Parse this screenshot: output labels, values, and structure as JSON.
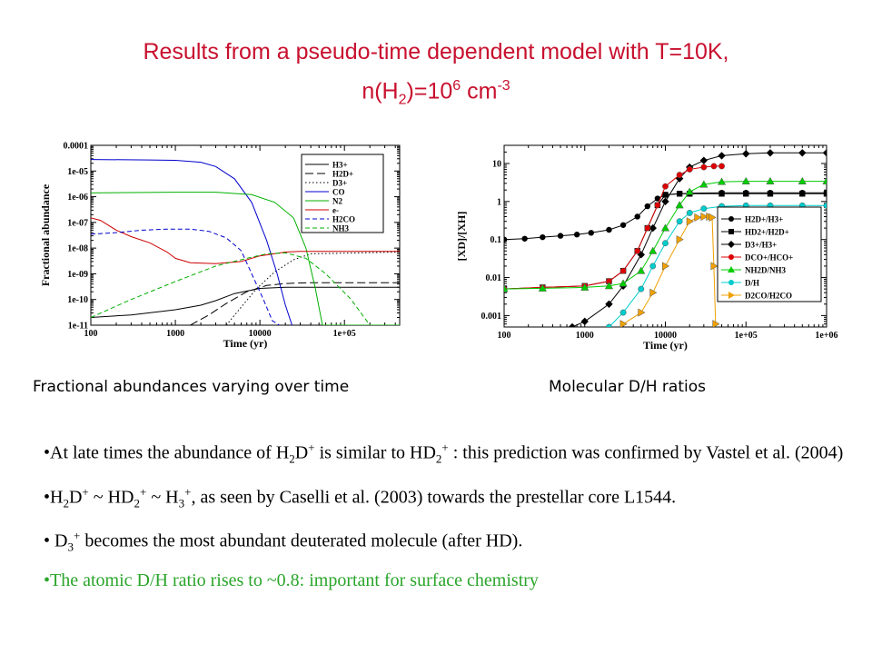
{
  "title": {
    "line1": "Results from a pseudo-time dependent model with T=10K,",
    "l2_a": "n(H",
    "l2_b": "2",
    "l2_c": ")=10",
    "l2_d": "6",
    "l2_e": " cm",
    "l2_f": "-3"
  },
  "captions": {
    "left": "Fractional abundances varying over time",
    "right": "Molecular D/H ratios"
  },
  "chart_data": [
    {
      "type": "line",
      "ylabel": "Fractional abundance",
      "xlabel": "Time (yr)",
      "xscale": "log",
      "yscale": "log",
      "xlim": [
        100,
        450000
      ],
      "ylim": [
        1e-11,
        0.0001
      ],
      "xticks": [
        "100",
        "1000",
        "10000",
        "1e+05"
      ],
      "yticks": [
        "1e-11",
        "1e-10",
        "1e-09",
        "1e-08",
        "1e-07",
        "1e-06",
        "1e-05",
        "0.0001"
      ],
      "legend_position": "top-right",
      "series": [
        {
          "name": "H3+",
          "color": "#000000",
          "dash": "solid",
          "x": [
            100,
            300,
            1000,
            2000,
            3000,
            5000,
            10000,
            20000,
            50000,
            450000
          ],
          "y": [
            2e-11,
            2.5e-11,
            4e-11,
            6e-11,
            9e-11,
            1.7e-10,
            2.7e-10,
            3e-10,
            3e-10,
            3e-10
          ]
        },
        {
          "name": "H2D+",
          "color": "#000000",
          "dash": "longdash",
          "x": [
            1500,
            2500,
            4000,
            7000,
            12000,
            20000,
            40000,
            450000
          ],
          "y": [
            1e-11,
            2.5e-11,
            7e-11,
            2e-10,
            3.5e-10,
            4.2e-10,
            4.5e-10,
            4.5e-10
          ]
        },
        {
          "name": "D3+",
          "color": "#000000",
          "dash": "dotted",
          "x": [
            4000,
            6000,
            9000,
            15000,
            25000,
            40000,
            450000
          ],
          "y": [
            1e-11,
            5e-11,
            2.5e-10,
            1.2e-09,
            3.5e-09,
            6e-09,
            7e-09
          ]
        },
        {
          "name": "CO",
          "color": "#0000cc",
          "dash": "solid",
          "x": [
            100,
            500,
            1000,
            2000,
            3000,
            5000,
            8000,
            12000,
            16000,
            20000,
            24000
          ],
          "y": [
            2.8e-05,
            2.7e-05,
            2.6e-05,
            2.2e-05,
            1.5e-05,
            5e-06,
            6e-07,
            2e-08,
            1e-09,
            6e-11,
            1e-11
          ]
        },
        {
          "name": "N2",
          "color": "#00b000",
          "dash": "solid",
          "x": [
            100,
            1000,
            3000,
            8000,
            15000,
            25000,
            35000,
            45000,
            55000,
            450000
          ],
          "y": [
            1.4e-06,
            1.5e-06,
            1.5e-06,
            1.2e-06,
            6e-07,
            1.5e-07,
            1e-08,
            3e-10,
            1e-11,
            1e-11
          ]
        },
        {
          "name": "e-",
          "color": "#cc0000",
          "dash": "solid",
          "x": [
            100,
            130,
            200,
            300,
            500,
            800,
            1000,
            1500,
            3000,
            6000,
            10000,
            20000,
            30000,
            450000
          ],
          "y": [
            1.5e-07,
            1.2e-07,
            5e-08,
            2.8e-08,
            1.6e-08,
            7e-09,
            4e-09,
            2.7e-09,
            2.5e-09,
            3e-09,
            5e-09,
            7e-09,
            7.5e-09,
            7.5e-09
          ]
        },
        {
          "name": "H2CO",
          "color": "#0000cc",
          "dash": "dashed",
          "x": [
            100,
            200,
            400,
            800,
            1500,
            2500,
            4000,
            6000,
            8000,
            11000,
            14000,
            17000
          ],
          "y": [
            3.5e-08,
            4e-08,
            5e-08,
            5.5e-08,
            5.5e-08,
            4.5e-08,
            2.5e-08,
            8e-09,
            1e-09,
            1e-10,
            1.5e-11,
            1e-11
          ]
        },
        {
          "name": "NH3",
          "color": "#00b000",
          "dash": "dashed",
          "x": [
            100,
            300,
            1000,
            3000,
            7000,
            12000,
            20000,
            35000,
            60000,
            120000,
            200000
          ],
          "y": [
            2e-11,
            1e-10,
            5e-10,
            2e-09,
            4e-09,
            6e-09,
            6.5e-09,
            4e-09,
            1e-09,
            1e-10,
            1e-11
          ]
        }
      ]
    },
    {
      "type": "line",
      "ylabel": "[XD]/[XH]",
      "xlabel": "Time (yr)",
      "xscale": "log",
      "yscale": "log",
      "xlim": [
        100,
        1000000
      ],
      "ylim": [
        0.0005,
        30
      ],
      "xticks": [
        "100",
        "1000",
        "10000",
        "1e+05",
        "1e+06"
      ],
      "yticks": [
        "0.001",
        "0.01",
        "0.1",
        "1",
        "10"
      ],
      "legend_position": "center-right",
      "series": [
        {
          "name": "H2D+/H3+",
          "color": "#000000",
          "marker": "circle",
          "x": [
            100,
            180,
            300,
            500,
            800,
            1200,
            2000,
            3000,
            4500,
            6000,
            8000,
            10000,
            15000,
            20000,
            50000,
            100000,
            200000,
            500000,
            1000000
          ],
          "y": [
            0.1,
            0.105,
            0.115,
            0.125,
            0.135,
            0.15,
            0.18,
            0.24,
            0.4,
            0.75,
            1.2,
            1.5,
            1.6,
            1.65,
            1.7,
            1.7,
            1.7,
            1.7,
            1.7
          ]
        },
        {
          "name": "HD2+/H2D+",
          "color": "#000000",
          "marker": "square",
          "x": [
            100,
            300,
            1000,
            2000,
            3000,
            4500,
            6000,
            8000,
            10000,
            15000,
            20000,
            50000,
            100000,
            200000,
            500000,
            1000000
          ],
          "y": [
            0.005,
            0.0055,
            0.006,
            0.008,
            0.015,
            0.05,
            0.2,
            0.8,
            1.5,
            1.6,
            1.6,
            1.6,
            1.6,
            1.6,
            1.6,
            1.6
          ]
        },
        {
          "name": "D3+/H3+",
          "color": "#000000",
          "marker": "diamond",
          "x": [
            700,
            1000,
            2000,
            3000,
            5000,
            7000,
            10000,
            15000,
            20000,
            30000,
            50000,
            100000,
            200000,
            500000,
            1000000
          ],
          "y": [
            0.0005,
            0.0007,
            0.002,
            0.006,
            0.04,
            0.2,
            1.0,
            4,
            8,
            12,
            16,
            18,
            19,
            19,
            19
          ]
        },
        {
          "name": "DCO+/HCO+",
          "color": "#dd0000",
          "marker": "circle",
          "x": [
            100,
            300,
            1000,
            2000,
            3000,
            4500,
            6000,
            8000,
            10000,
            15000,
            20000,
            30000,
            40000,
            50000
          ],
          "y": [
            0.005,
            0.0055,
            0.006,
            0.008,
            0.015,
            0.05,
            0.2,
            0.8,
            2.5,
            5,
            7,
            8,
            8.5,
            8.5
          ]
        },
        {
          "name": "NH2D/NH3",
          "color": "#00cc00",
          "marker": "triangle",
          "x": [
            100,
            300,
            1000,
            2000,
            3000,
            5000,
            7000,
            10000,
            15000,
            20000,
            30000,
            50000,
            100000,
            200000,
            500000,
            1000000
          ],
          "y": [
            0.005,
            0.0052,
            0.0055,
            0.006,
            0.007,
            0.015,
            0.05,
            0.2,
            0.8,
            1.8,
            2.8,
            3.3,
            3.4,
            3.4,
            3.4,
            3.4
          ]
        },
        {
          "name": "D/H",
          "color": "#00cccc",
          "marker": "circle",
          "x": [
            2000,
            3000,
            5000,
            7000,
            10000,
            15000,
            20000,
            30000,
            50000,
            100000,
            200000,
            500000,
            1000000
          ],
          "y": [
            0.0005,
            0.0012,
            0.005,
            0.02,
            0.08,
            0.3,
            0.5,
            0.65,
            0.75,
            0.78,
            0.78,
            0.78,
            0.78
          ]
        },
        {
          "name": "D2CO/H2CO",
          "color": "#f0a000",
          "marker": "triangle-right",
          "x": [
            3000,
            5000,
            7000,
            10000,
            15000,
            20000,
            25000,
            30000,
            35000,
            38000,
            40000,
            42000
          ],
          "y": [
            0.0006,
            0.0012,
            0.004,
            0.02,
            0.1,
            0.3,
            0.38,
            0.4,
            0.4,
            0.38,
            0.02,
            0.0006
          ]
        }
      ]
    }
  ],
  "bullets": [
    {
      "p1": "At late times the abundance of H",
      "p2": "2",
      "p3": "D",
      "p4": "+",
      "p5": " is similar to HD",
      "p6": "2",
      "p7": "+",
      "p8": " : this prediction was confirmed by Vastel et al. (2004)"
    },
    {
      "p1": "H",
      "p2": "2",
      "p3": "D",
      "p4": "+",
      "p5": " ~ HD",
      "p6": "2",
      "p7": "+",
      "p8": " ~ H",
      "p9": "3",
      "p10": "+",
      "p11": ", as seen by Caselli et al. (2003) towards the prestellar core L1544."
    },
    {
      "p1": " D",
      "p2": "3",
      "p3": "+",
      "p4": " becomes the most abundant deuterated molecule (after HD)."
    },
    {
      "p1": "The atomic D/H ratio rises to ~0.8: important for surface chemistry"
    }
  ],
  "colors": {
    "title": "#c8102e",
    "last_bullet": "#2aa52a"
  }
}
